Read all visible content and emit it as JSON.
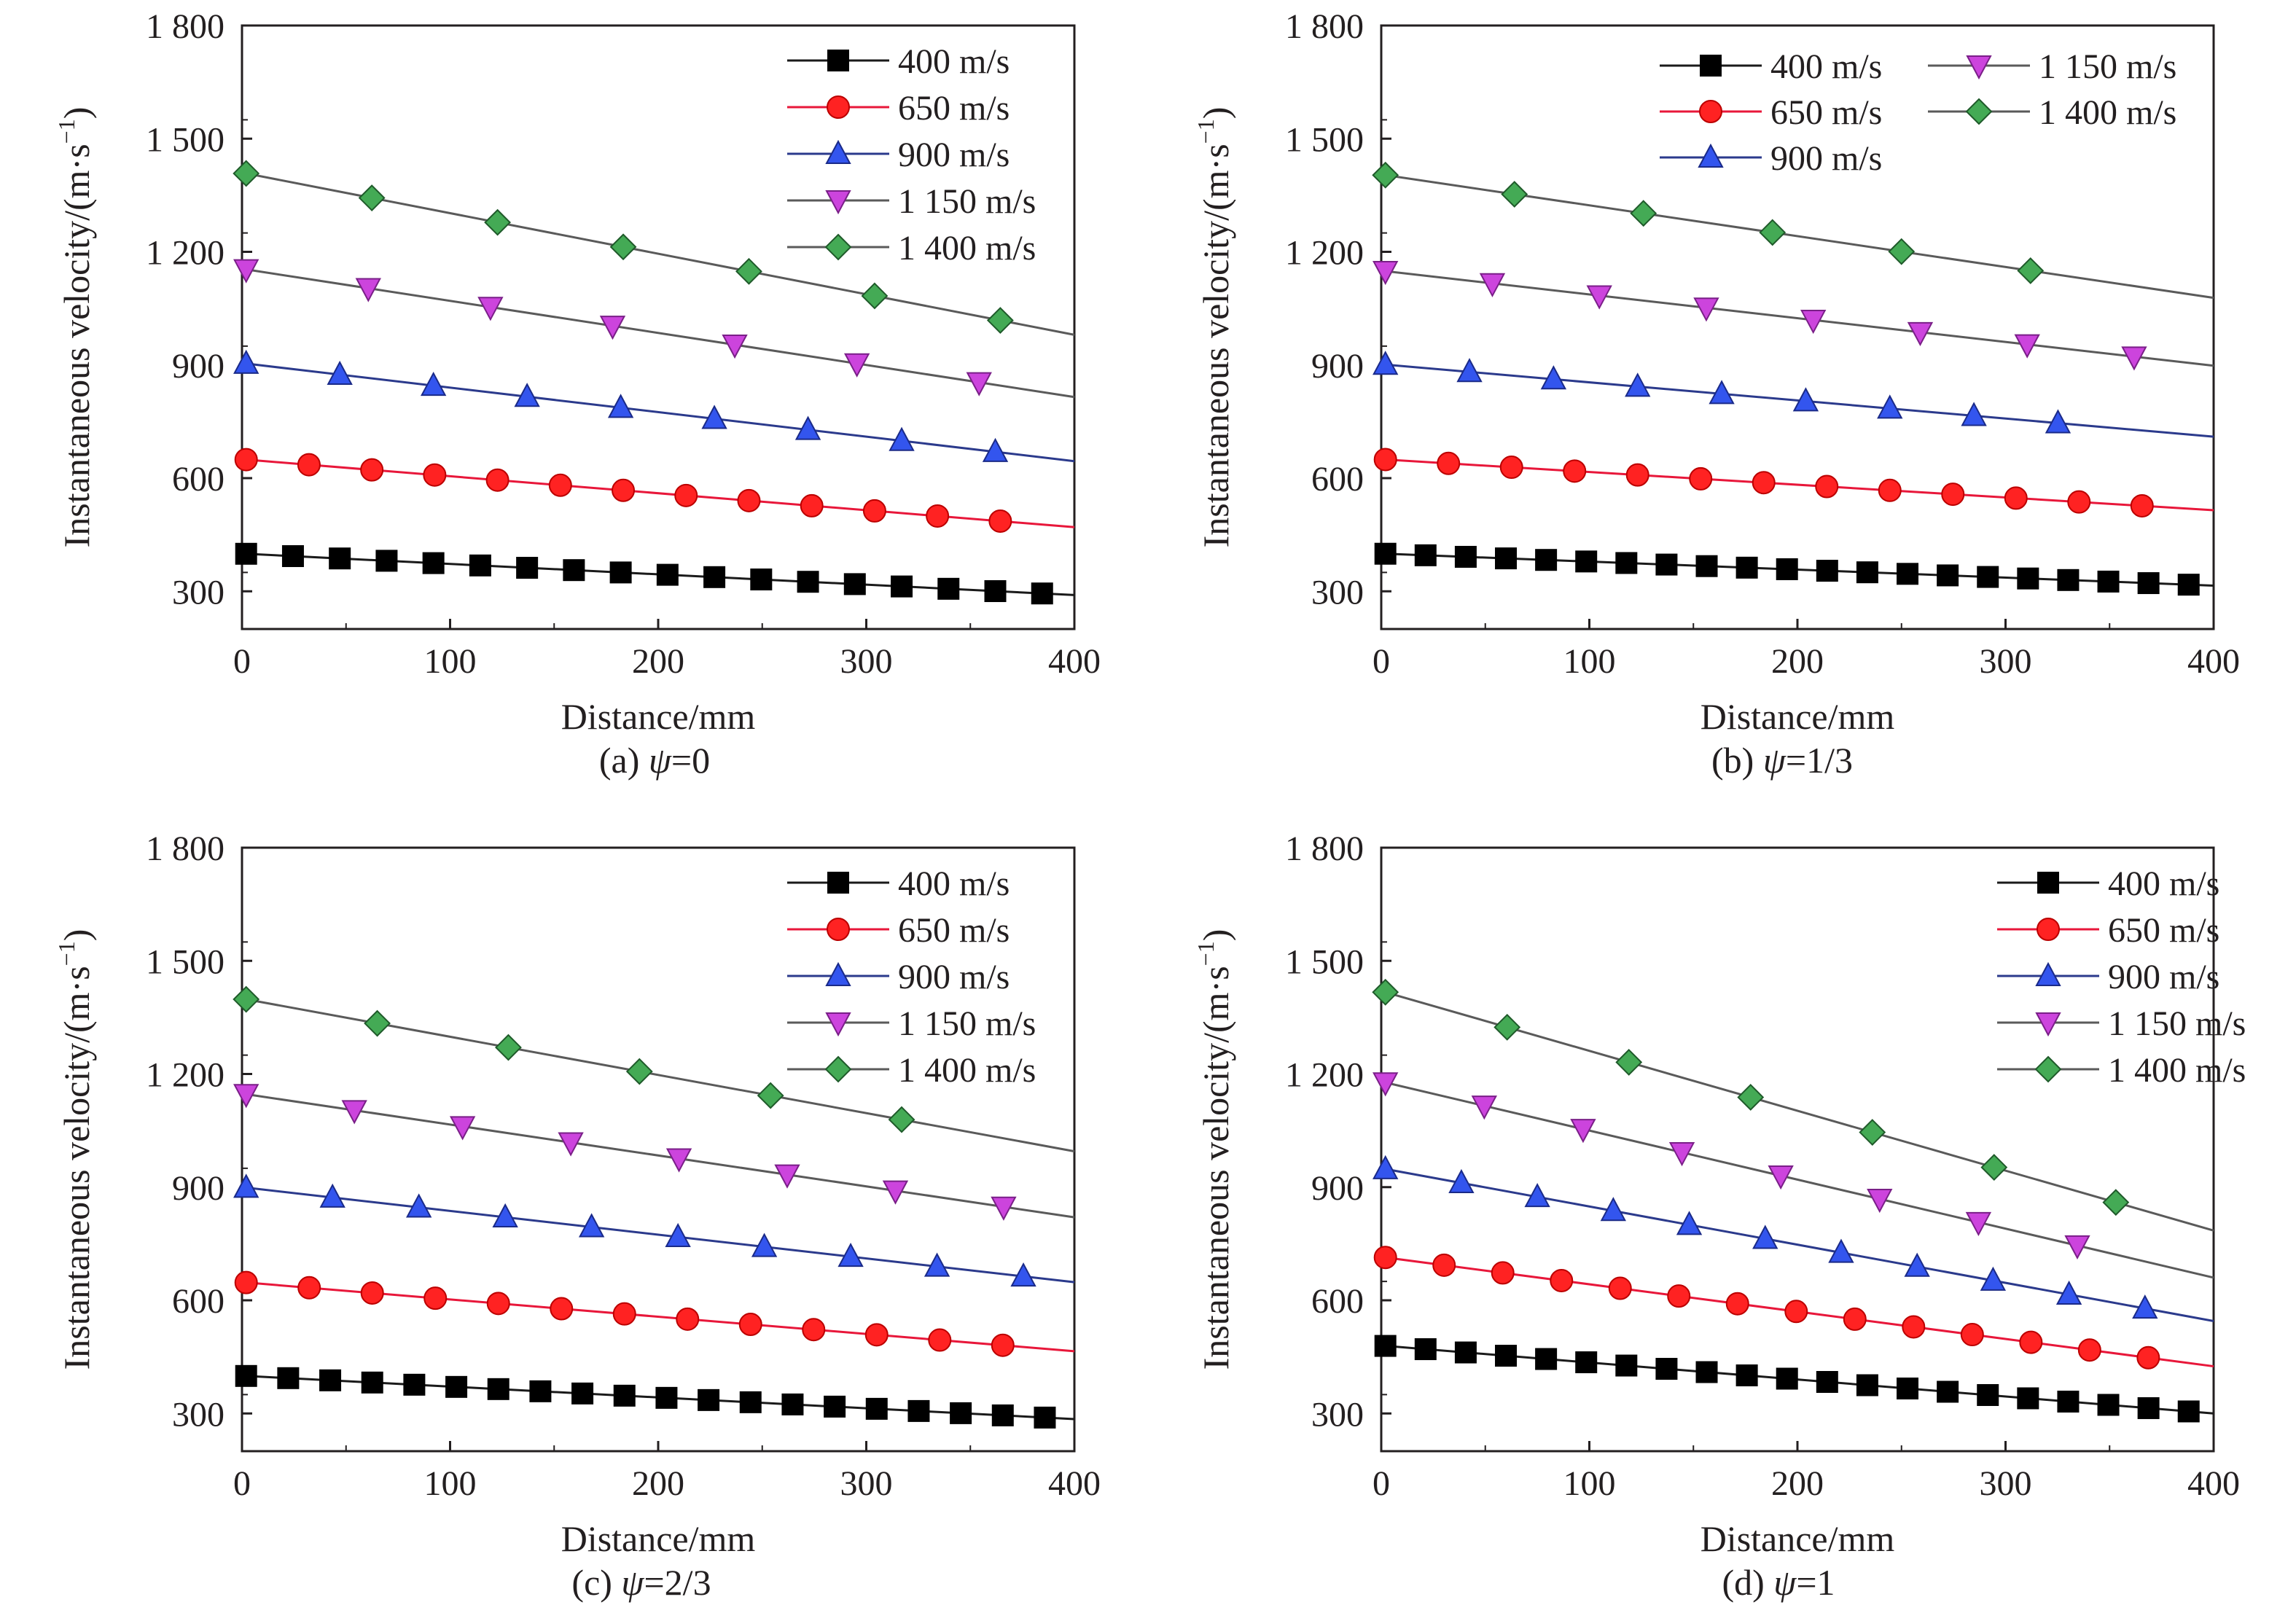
{
  "figure": {
    "panels": [
      {
        "caption_prefix": "(a) ",
        "caption_psi": "ψ",
        "caption_suffix": "=0",
        "legend_layout": "one-column",
        "chart_data": {
          "type": "line",
          "xlabel": "Distance/mm",
          "ylabel_main": "Instantaneous velocity/(m·s",
          "ylabel_sup": "−1",
          "ylabel_close": ")",
          "xlim": [
            0,
            400
          ],
          "ylim": [
            200,
            1800
          ],
          "xticks": [
            "0",
            "100",
            "200",
            "300",
            "400"
          ],
          "yticks": [
            "300",
            "600",
            "900",
            "1 200",
            "1 500",
            "1 800"
          ],
          "legend_position": "top-right",
          "grid": false,
          "series": [
            {
              "name": "400 m/s",
              "marker": "square",
              "color": "#000000",
              "line_color": "#1a1a1a",
              "start": 400,
              "end": 290,
              "step": 22.5,
              "first": 0,
              "last": 395
            },
            {
              "name": "650 m/s",
              "marker": "circle",
              "color": "#ff2222",
              "line_color": "#e8173a",
              "start": 650,
              "end": 470,
              "step": 30.2,
              "first": 0,
              "last": 390
            },
            {
              "name": "900 m/s",
              "marker": "triangle-up",
              "color": "#3355ee",
              "line_color": "#2b3a8c",
              "start": 905,
              "end": 645,
              "step": 45,
              "first": 0,
              "last": 385
            },
            {
              "name": "1 150 m/s",
              "marker": "triangle-down",
              "color": "#cc44dd",
              "line_color": "#5a5a5a",
              "start": 1155,
              "end": 815,
              "step": 58.7,
              "first": 0,
              "last": 390
            },
            {
              "name": "1 400 m/s",
              "marker": "diamond",
              "color": "#44aa55",
              "line_color": "#5a5a5a",
              "start": 1410,
              "end": 980,
              "step": 60.4,
              "first": 0,
              "last": 380
            }
          ]
        }
      },
      {
        "caption_prefix": "(b) ",
        "caption_psi": "ψ",
        "caption_suffix": "=1/3",
        "legend_layout": "two-column",
        "chart_data": {
          "type": "line",
          "xlabel": "Distance/mm",
          "ylabel_main": "Instantaneous velocity/(m·s",
          "ylabel_sup": "−1",
          "ylabel_close": ")",
          "xlim": [
            0,
            400
          ],
          "ylim": [
            200,
            1800
          ],
          "xticks": [
            "0",
            "100",
            "200",
            "300",
            "400"
          ],
          "yticks": [
            "300",
            "600",
            "900",
            "1 200",
            "1 500",
            "1 800"
          ],
          "legend_position": "top-right",
          "grid": false,
          "series": [
            {
              "name": "400 m/s",
              "marker": "square",
              "color": "#000000",
              "line_color": "#1a1a1a",
              "start": 400,
              "end": 315,
              "step": 19.3,
              "first": 0,
              "last": 395
            },
            {
              "name": "650 m/s",
              "marker": "circle",
              "color": "#ff2222",
              "line_color": "#e8173a",
              "start": 650,
              "end": 515,
              "step": 30.3,
              "first": 0,
              "last": 380
            },
            {
              "name": "900 m/s",
              "marker": "triangle-up",
              "color": "#3355ee",
              "line_color": "#2b3a8c",
              "start": 902,
              "end": 710,
              "step": 40.4,
              "first": 0,
              "last": 365
            },
            {
              "name": "1 150 m/s",
              "marker": "triangle-down",
              "color": "#cc44dd",
              "line_color": "#5a5a5a",
              "start": 1150,
              "end": 898,
              "step": 51.4,
              "first": 0,
              "last": 365
            },
            {
              "name": "1 400 m/s",
              "marker": "diamond",
              "color": "#44aa55",
              "line_color": "#5a5a5a",
              "start": 1405,
              "end": 1078,
              "step": 62,
              "first": 0,
              "last": 370
            }
          ]
        }
      },
      {
        "caption_prefix": "(c) ",
        "caption_psi": "ψ",
        "caption_suffix": "=2/3",
        "legend_layout": "one-column",
        "chart_data": {
          "type": "line",
          "xlabel": "Distance/mm",
          "ylabel_main": "Instantaneous velocity/(m·s",
          "ylabel_sup": "−1",
          "ylabel_close": ")",
          "xlim": [
            0,
            400
          ],
          "ylim": [
            200,
            1800
          ],
          "xticks": [
            "0",
            "100",
            "200",
            "300",
            "400"
          ],
          "yticks": [
            "300",
            "600",
            "900",
            "1 200",
            "1 500",
            "1 800"
          ],
          "legend_position": "top-right",
          "grid": false,
          "series": [
            {
              "name": "400 m/s",
              "marker": "square",
              "color": "#000000",
              "line_color": "#1a1a1a",
              "start": 400,
              "end": 285,
              "step": 20.2,
              "first": 0,
              "last": 392
            },
            {
              "name": "650 m/s",
              "marker": "circle",
              "color": "#ff2222",
              "line_color": "#e8173a",
              "start": 648,
              "end": 465,
              "step": 30.3,
              "first": 0,
              "last": 390
            },
            {
              "name": "900 m/s",
              "marker": "triangle-up",
              "color": "#3355ee",
              "line_color": "#2b3a8c",
              "start": 900,
              "end": 648,
              "step": 41.5,
              "first": 0,
              "last": 385
            },
            {
              "name": "1 150 m/s",
              "marker": "triangle-down",
              "color": "#cc44dd",
              "line_color": "#5a5a5a",
              "start": 1148,
              "end": 820,
              "step": 52,
              "first": 0,
              "last": 390
            },
            {
              "name": "1 400 m/s",
              "marker": "diamond",
              "color": "#44aa55",
              "line_color": "#5a5a5a",
              "start": 1400,
              "end": 995,
              "step": 63,
              "first": 0,
              "last": 360
            }
          ]
        }
      },
      {
        "caption_prefix": "(d) ",
        "caption_psi": "ψ",
        "caption_suffix": "=1",
        "legend_layout": "one-column",
        "chart_data": {
          "type": "line",
          "xlabel": "Distance/mm",
          "ylabel_main": "Instantaneous velocity/(m·s",
          "ylabel_sup": "−1",
          "ylabel_close": ")",
          "xlim": [
            0,
            400
          ],
          "ylim": [
            200,
            1800
          ],
          "xticks": [
            "0",
            "100",
            "200",
            "300",
            "400"
          ],
          "yticks": [
            "300",
            "600",
            "900",
            "1 200",
            "1 500",
            "1 800"
          ],
          "legend_position": "top-right",
          "grid": false,
          "series": [
            {
              "name": "400 m/s",
              "marker": "square",
              "color": "#000000",
              "line_color": "#1a1a1a",
              "start": 480,
              "end": 300,
              "step": 19.3,
              "first": 0,
              "last": 395
            },
            {
              "name": "650 m/s",
              "marker": "circle",
              "color": "#ff2222",
              "line_color": "#e8173a",
              "start": 715,
              "end": 425,
              "step": 28.2,
              "first": 0,
              "last": 395
            },
            {
              "name": "900 m/s",
              "marker": "triangle-up",
              "color": "#3355ee",
              "line_color": "#2b3a8c",
              "start": 950,
              "end": 545,
              "step": 36.5,
              "first": 0,
              "last": 385
            },
            {
              "name": "1 150 m/s",
              "marker": "triangle-down",
              "color": "#cc44dd",
              "line_color": "#5a5a5a",
              "start": 1180,
              "end": 660,
              "step": 47.5,
              "first": 0,
              "last": 375
            },
            {
              "name": "1 400 m/s",
              "marker": "diamond",
              "color": "#44aa55",
              "line_color": "#5a5a5a",
              "start": 1420,
              "end": 785,
              "step": 58.5,
              "first": 0,
              "last": 395
            }
          ]
        }
      }
    ]
  }
}
